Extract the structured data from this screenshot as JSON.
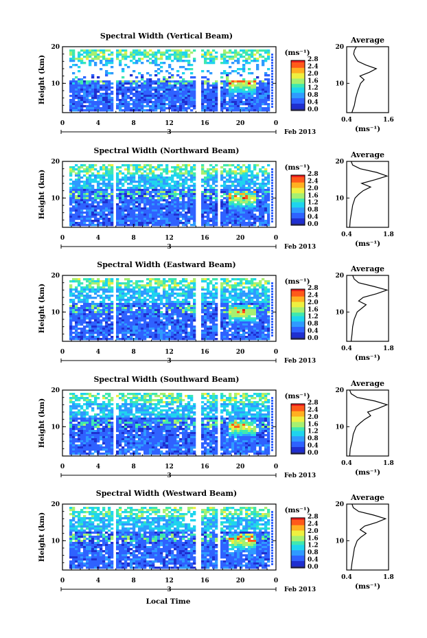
{
  "figure": {
    "xlabel": "Local Time",
    "date_label": "Feb 2013",
    "ylabel": "Height (km)",
    "unit_label": "(ms⁻¹)",
    "avg_title": "Average",
    "avg_unit": "(ms⁻¹)",
    "colorscale": [
      "#2a2a6e",
      "#1f2fd0",
      "#2f62ff",
      "#2f9aff",
      "#1fd4ee",
      "#3fe8b0",
      "#a6f070",
      "#eef040",
      "#ffb020",
      "#ff5a1a",
      "#e81c1c"
    ]
  },
  "chart_data": [
    {
      "type": "heatmap",
      "title": "Spectral Width (Vertical Beam)",
      "x_ticks": [
        "0",
        "4",
        "8",
        "12",
        "16",
        "20",
        "0"
      ],
      "x_date_tick": "3",
      "y_ticks": [
        "10",
        "20"
      ],
      "xlim": [
        0,
        24
      ],
      "ylim": [
        2,
        20
      ],
      "colorbar_ticks": [
        "0.0",
        "0.4",
        "0.8",
        "1.2",
        "1.6",
        "2.0",
        "2.4",
        "2.8"
      ],
      "colorbar_range": [
        0,
        2.8
      ],
      "gaps_hours": [
        [
          5.5,
          5.8
        ],
        [
          14.8,
          15.3
        ],
        [
          17.2,
          17.6
        ]
      ],
      "average_profile": {
        "xlim": [
          0.4,
          1.6
        ],
        "x_ticks": [
          "0.4",
          "1.6"
        ],
        "y_ticks": [
          "10",
          "20"
        ],
        "height_km": [
          2,
          4,
          6,
          8,
          10,
          11,
          12,
          13,
          14,
          15,
          16,
          17,
          18,
          19,
          20
        ],
        "value": [
          0.55,
          0.62,
          0.66,
          0.72,
          0.8,
          0.9,
          0.78,
          1.05,
          1.25,
          0.95,
          0.72,
          0.65,
          0.6,
          0.62,
          0.68
        ]
      }
    },
    {
      "type": "heatmap",
      "title": "Spectral Width (Northward Beam)",
      "x_ticks": [
        "0",
        "4",
        "8",
        "12",
        "16",
        "20",
        "0"
      ],
      "x_date_tick": "3",
      "y_ticks": [
        "10",
        "20"
      ],
      "xlim": [
        0,
        24
      ],
      "ylim": [
        2,
        20
      ],
      "colorbar_ticks": [
        "0.0",
        "0.4",
        "0.8",
        "1.2",
        "1.6",
        "2.0",
        "2.4",
        "2.8"
      ],
      "colorbar_range": [
        0,
        2.8
      ],
      "gaps_hours": [
        [
          5.5,
          5.8
        ],
        [
          14.8,
          15.3
        ],
        [
          17.2,
          17.6
        ]
      ],
      "average_profile": {
        "xlim": [
          0.4,
          1.8
        ],
        "x_ticks": [
          "0.4",
          "1.8"
        ],
        "y_ticks": [
          "10",
          "20"
        ],
        "height_km": [
          2,
          4,
          6,
          8,
          10,
          11,
          12,
          13,
          14,
          15,
          16,
          17,
          18,
          19,
          20
        ],
        "value": [
          0.5,
          0.52,
          0.56,
          0.6,
          0.68,
          0.8,
          0.95,
          1.2,
          0.9,
          1.35,
          1.75,
          1.4,
          0.85,
          0.6,
          0.55
        ]
      }
    },
    {
      "type": "heatmap",
      "title": "Spectral Width (Eastward Beam)",
      "x_ticks": [
        "0",
        "4",
        "8",
        "12",
        "16",
        "20",
        "0"
      ],
      "x_date_tick": "3",
      "y_ticks": [
        "10",
        "20"
      ],
      "xlim": [
        0,
        24
      ],
      "ylim": [
        2,
        20
      ],
      "colorbar_ticks": [
        "0.0",
        "0.4",
        "0.8",
        "1.2",
        "1.6",
        "2.0",
        "2.4",
        "2.8"
      ],
      "colorbar_range": [
        0,
        2.8
      ],
      "gaps_hours": [
        [
          5.5,
          5.8
        ],
        [
          14.8,
          15.3
        ],
        [
          17.2,
          17.6
        ]
      ],
      "average_profile": {
        "xlim": [
          0.4,
          1.8
        ],
        "x_ticks": [
          "0.4",
          "1.8"
        ],
        "y_ticks": [
          "10",
          "20"
        ],
        "height_km": [
          2,
          4,
          6,
          8,
          10,
          11,
          12,
          13,
          14,
          15,
          16,
          17,
          18,
          19,
          20
        ],
        "value": [
          0.55,
          0.58,
          0.6,
          0.65,
          0.75,
          0.9,
          1.05,
          0.8,
          0.95,
          1.4,
          1.75,
          1.3,
          0.8,
          0.65,
          0.6
        ]
      }
    },
    {
      "type": "heatmap",
      "title": "Spectral Width (Southward Beam)",
      "x_ticks": [
        "0",
        "4",
        "8",
        "12",
        "16",
        "20",
        "0"
      ],
      "x_date_tick": "3",
      "y_ticks": [
        "10",
        "20"
      ],
      "xlim": [
        0,
        24
      ],
      "ylim": [
        2,
        20
      ],
      "colorbar_ticks": [
        "0.0",
        "0.4",
        "0.8",
        "1.2",
        "1.6",
        "2.0",
        "2.4",
        "2.8"
      ],
      "colorbar_range": [
        0,
        2.8
      ],
      "gaps_hours": [
        [
          5.5,
          5.8
        ],
        [
          14.8,
          15.3
        ],
        [
          17.2,
          17.6
        ]
      ],
      "average_profile": {
        "xlim": [
          0.4,
          1.8
        ],
        "x_ticks": [
          "0.4",
          "1.8"
        ],
        "y_ticks": [
          "10",
          "20"
        ],
        "height_km": [
          2,
          4,
          6,
          8,
          10,
          11,
          12,
          13,
          14,
          15,
          16,
          17,
          18,
          19,
          20
        ],
        "value": [
          0.5,
          0.52,
          0.58,
          0.62,
          0.72,
          0.85,
          1.0,
          1.2,
          1.1,
          1.45,
          1.75,
          1.35,
          0.75,
          0.55,
          0.5
        ]
      }
    },
    {
      "type": "heatmap",
      "title": "Spectral Width (Westward Beam)",
      "x_ticks": [
        "0",
        "4",
        "8",
        "12",
        "16",
        "20",
        "0"
      ],
      "x_date_tick": "3",
      "y_ticks": [
        "10",
        "20"
      ],
      "xlim": [
        0,
        24
      ],
      "ylim": [
        2,
        20
      ],
      "colorbar_ticks": [
        "0.0",
        "0.4",
        "0.8",
        "1.2",
        "1.6",
        "2.0",
        "2.4",
        "2.8"
      ],
      "colorbar_range": [
        0,
        2.8
      ],
      "gaps_hours": [
        [
          5.5,
          5.8
        ],
        [
          14.8,
          15.3
        ],
        [
          17.2,
          17.6
        ]
      ],
      "average_profile": {
        "xlim": [
          0.4,
          1.8
        ],
        "x_ticks": [
          "0.4",
          "1.8"
        ],
        "y_ticks": [
          "10",
          "20"
        ],
        "height_km": [
          2,
          4,
          6,
          8,
          10,
          11,
          12,
          13,
          14,
          15,
          16,
          17,
          18,
          19,
          20
        ],
        "value": [
          0.55,
          0.58,
          0.62,
          0.66,
          0.75,
          0.88,
          1.05,
          0.85,
          1.0,
          1.4,
          1.7,
          1.3,
          0.8,
          0.62,
          0.58
        ]
      }
    }
  ]
}
